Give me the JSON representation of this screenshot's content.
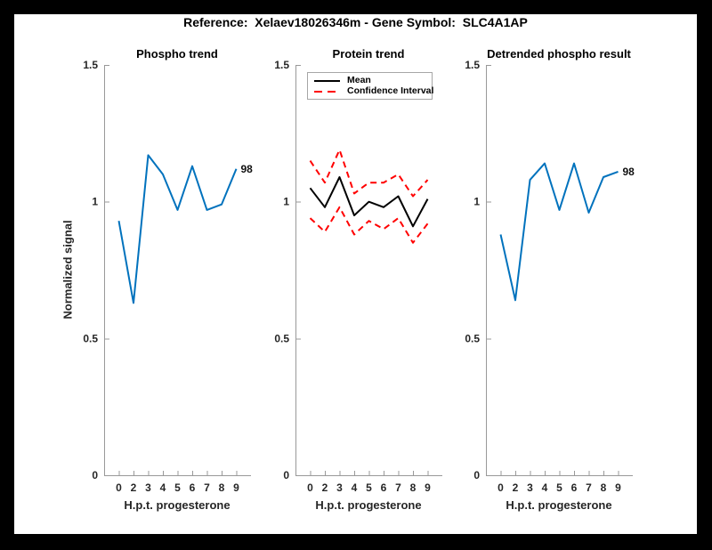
{
  "window": {
    "background": "#000000",
    "canvas": "#ffffff"
  },
  "header": {
    "title": "Reference:  Xelaev18026346m - Gene Symbol:  SLC4A1AP"
  },
  "colors": {
    "line_blue": "#0072BD",
    "ci_red": "#FF0000",
    "mean_black": "#000000",
    "axis": "#999999",
    "tick_text": "#262626"
  },
  "axes": {
    "ylabel": "Normalized signal",
    "y_ticks": [
      0,
      0.5,
      1,
      1.5
    ],
    "y_tick_labels": [
      "0",
      "0.5",
      "1",
      "1.5"
    ],
    "ylim": [
      0,
      1.5
    ]
  },
  "chart_data": [
    {
      "type": "line",
      "title": "Phospho trend",
      "xlabel": "H.p.t. progesterone",
      "ylabel": "Normalized signal",
      "x_tick_labels": [
        "0",
        "2",
        "3",
        "4",
        "5",
        "6",
        "7",
        "8",
        "9"
      ],
      "ylim": [
        0,
        1.5
      ],
      "grid": false,
      "series": [
        {
          "name": "Phospho signal",
          "color": "#0072BD",
          "dash": "solid",
          "end_label": "98",
          "values": [
            0.93,
            0.63,
            1.17,
            1.1,
            0.97,
            1.13,
            0.97,
            0.99,
            1.12
          ]
        }
      ]
    },
    {
      "type": "line",
      "title": "Protein trend",
      "xlabel": "H.p.t. progesterone",
      "x_tick_labels": [
        "0",
        "2",
        "3",
        "4",
        "5",
        "6",
        "7",
        "8",
        "9"
      ],
      "ylim": [
        0,
        1.5
      ],
      "grid": false,
      "legend": [
        "Mean",
        "Confidence Interval"
      ],
      "legend_position": "top-left",
      "series": [
        {
          "name": "Mean",
          "color": "#000000",
          "dash": "solid",
          "values": [
            1.05,
            0.98,
            1.09,
            0.95,
            1.0,
            0.98,
            1.02,
            0.91,
            1.01
          ]
        },
        {
          "name": "Confidence Interval upper",
          "color": "#FF0000",
          "dash": "dashed",
          "values": [
            1.15,
            1.07,
            1.19,
            1.03,
            1.07,
            1.07,
            1.1,
            1.02,
            1.08
          ]
        },
        {
          "name": "Confidence Interval lower",
          "color": "#FF0000",
          "dash": "dashed",
          "values": [
            0.94,
            0.89,
            0.98,
            0.88,
            0.93,
            0.9,
            0.94,
            0.85,
            0.92
          ]
        }
      ]
    },
    {
      "type": "line",
      "title": "Detrended phospho result",
      "xlabel": "H.p.t. progesterone",
      "x_tick_labels": [
        "0",
        "2",
        "3",
        "4",
        "5",
        "6",
        "7",
        "8",
        "9"
      ],
      "ylim": [
        0,
        1.5
      ],
      "grid": false,
      "series": [
        {
          "name": "Detrended phospho signal",
          "color": "#0072BD",
          "dash": "solid",
          "end_label": "98",
          "values": [
            0.88,
            0.64,
            1.08,
            1.14,
            0.97,
            1.14,
            0.96,
            1.09,
            1.11
          ]
        }
      ]
    }
  ]
}
